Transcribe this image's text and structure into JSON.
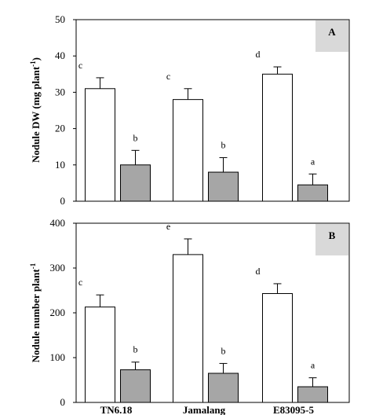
{
  "chart_data": [
    {
      "type": "bar",
      "panel_label": "A",
      "ylabel_main": "Nodule DW (mg plant",
      "ylabel_sup": "-1",
      "ylabel_end": ")",
      "ylim": [
        0,
        50
      ],
      "yticks": [
        "0",
        "10",
        "20",
        "30",
        "40",
        "50"
      ],
      "ytick_values": [
        0,
        10,
        20,
        30,
        40,
        50
      ],
      "categories": [
        "TN6.18",
        "Jamalang",
        "E83095-5"
      ],
      "series": [
        {
          "color": "#ffffff",
          "values": [
            31,
            28,
            35
          ],
          "errors": [
            3,
            3,
            2
          ],
          "letters": [
            "c",
            "c",
            "d"
          ]
        },
        {
          "color": "#a6a6a6",
          "values": [
            10,
            8,
            4.5
          ],
          "errors": [
            4,
            4,
            3
          ],
          "letters": [
            "b",
            "b",
            "a"
          ]
        }
      ]
    },
    {
      "type": "bar",
      "panel_label": "B",
      "ylabel_main": "Nodule number plant",
      "ylabel_sup": "-1",
      "ylabel_end": "",
      "ylim": [
        0,
        400
      ],
      "yticks": [
        "0",
        "100",
        "200",
        "300",
        "400"
      ],
      "ytick_values": [
        0,
        100,
        200,
        300,
        400
      ],
      "categories": [
        "TN6.18",
        "Jamalang",
        "E83095-5"
      ],
      "series": [
        {
          "color": "#ffffff",
          "values": [
            213,
            330,
            243
          ],
          "errors": [
            27,
            35,
            22
          ],
          "letters": [
            "c",
            "e",
            "d"
          ]
        },
        {
          "color": "#a6a6a6",
          "values": [
            73,
            65,
            35
          ],
          "errors": [
            17,
            22,
            20
          ],
          "letters": [
            "b",
            "b",
            "a"
          ]
        }
      ]
    }
  ]
}
